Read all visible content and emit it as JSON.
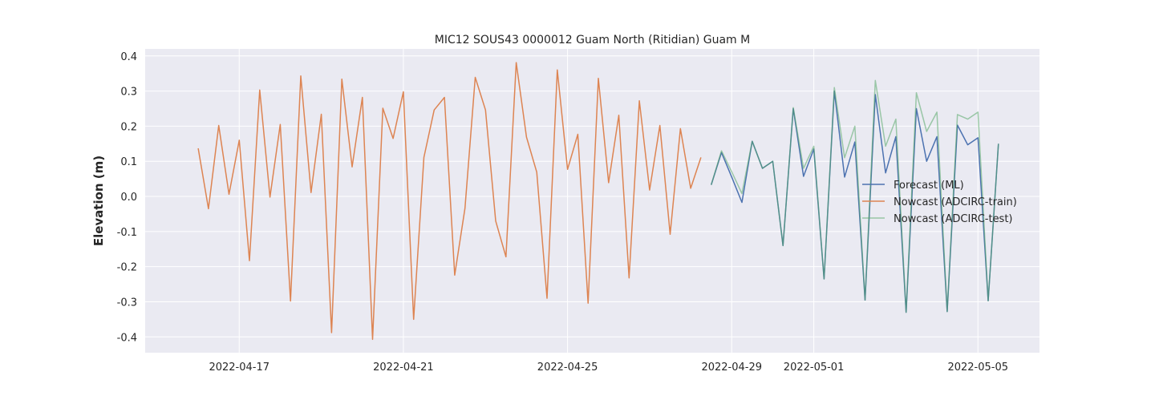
{
  "chart_data": {
    "type": "line",
    "title": "MIC12 SOUS43 0000012 Guam North (Ritidian) Guam M",
    "xlabel": "",
    "ylabel": "Elevation (m)",
    "ylim": [
      -0.445,
      0.42
    ],
    "xlim": [
      "2022-04-14T17:00",
      "2022-05-06T12:00"
    ],
    "x_ticks": [
      "2022-04-17",
      "2022-04-21",
      "2022-04-25",
      "2022-04-29",
      "2022-05-01",
      "2022-05-05"
    ],
    "y_ticks": [
      -0.4,
      -0.3,
      -0.2,
      -0.1,
      0.0,
      0.1,
      0.2,
      0.3,
      0.4
    ],
    "grid": true,
    "legend_position": "center-right",
    "series": [
      {
        "name": "Forecast (ML)",
        "color": "#4c72b0",
        "x_start": "2022-04-28T12:00",
        "step_hours": 6,
        "values": [
          0.033,
          0.125,
          0.055,
          -0.017,
          0.157,
          0.08,
          0.1,
          -0.14,
          0.25,
          0.057,
          0.135,
          -0.235,
          0.3,
          0.055,
          0.155,
          -0.295,
          0.29,
          0.067,
          0.17,
          -0.33,
          0.25,
          0.1,
          0.17,
          -0.328,
          0.203,
          0.147,
          0.167,
          -0.297,
          0.15
        ]
      },
      {
        "name": "Nowcast (ADCIRC-train)",
        "color": "#dd8452",
        "x_start": "2022-04-16T00:00",
        "step_hours": 6,
        "values": [
          0.137,
          -0.035,
          0.202,
          0.006,
          0.16,
          -0.183,
          0.303,
          -0.002,
          0.205,
          -0.298,
          0.343,
          0.011,
          0.234,
          -0.388,
          0.334,
          0.084,
          0.282,
          -0.407,
          0.251,
          0.165,
          0.298,
          -0.35,
          0.111,
          0.246,
          0.282,
          -0.224,
          -0.034,
          0.339,
          0.246,
          -0.07,
          -0.172,
          0.381,
          0.169,
          0.069,
          -0.29,
          0.36,
          0.077,
          0.177,
          -0.304,
          0.336,
          0.039,
          0.231,
          -0.232,
          0.272,
          0.018,
          0.202,
          -0.108,
          0.193,
          0.023,
          0.111
        ]
      },
      {
        "name": "Nowcast (ADCIRC-test)",
        "color": "#55a868",
        "x_start": "2022-04-28T12:00",
        "step_hours": 6,
        "values": [
          0.033,
          0.13,
          0.07,
          0.008,
          0.157,
          0.08,
          0.1,
          -0.14,
          0.253,
          0.08,
          0.143,
          -0.235,
          0.31,
          0.11,
          0.2,
          -0.295,
          0.33,
          0.143,
          0.22,
          -0.33,
          0.295,
          0.185,
          0.24,
          -0.328,
          0.233,
          0.22,
          0.24,
          -0.297,
          0.15
        ]
      }
    ]
  }
}
